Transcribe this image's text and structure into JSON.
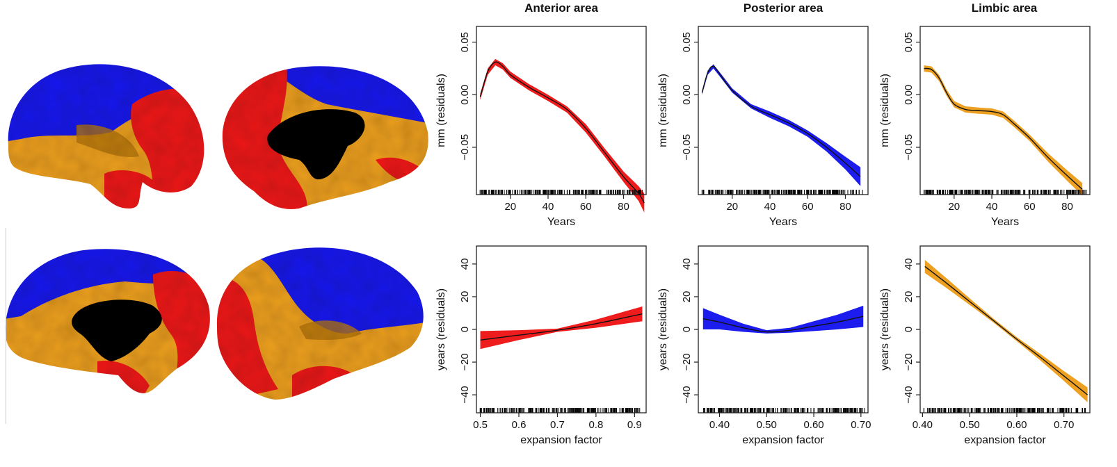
{
  "colors": {
    "anterior": "#ee1c1c",
    "posterior": "#1c1cee",
    "limbic": "#eda021",
    "fit_line": "#111111",
    "medial_wall": "#000000"
  },
  "brain_maps": {
    "description_icon": "brain-surface-icon",
    "views": [
      "lateral-left",
      "medial-left",
      "medial-right",
      "lateral-right"
    ]
  },
  "chart_data": [
    {
      "type": "line",
      "title": "Anterior area",
      "xlabel": "Years",
      "ylabel": "mm (residuals)",
      "xlim": [
        2,
        92
      ],
      "ylim": [
        -0.095,
        0.065
      ],
      "xticks": [
        20,
        40,
        60,
        80
      ],
      "xtick_labels": [
        "20",
        "40",
        "60",
        "80"
      ],
      "yticks": [
        -0.05,
        0.0,
        0.05
      ],
      "ytick_labels": [
        "−0.05",
        "0.00",
        "0.05"
      ],
      "rug": true,
      "grid": false,
      "series": [
        {
          "x": [
            4,
            8,
            12,
            16,
            20,
            30,
            40,
            50,
            60,
            70,
            80,
            88,
            91
          ],
          "y": [
            -0.002,
            0.022,
            0.031,
            0.027,
            0.019,
            0.007,
            -0.003,
            -0.014,
            -0.032,
            -0.055,
            -0.078,
            -0.094,
            -0.103
          ],
          "band": [
            0.003,
            0.003,
            0.003,
            0.003,
            0.003,
            0.003,
            0.003,
            0.003,
            0.004,
            0.004,
            0.005,
            0.007,
            0.009
          ]
        }
      ]
    },
    {
      "type": "line",
      "title": "Posterior area",
      "xlabel": "Years",
      "ylabel": "mm (residuals)",
      "xlim": [
        2,
        92
      ],
      "ylim": [
        -0.095,
        0.065
      ],
      "xticks": [
        20,
        40,
        60,
        80
      ],
      "xtick_labels": [
        "20",
        "40",
        "60",
        "80"
      ],
      "yticks": [
        -0.05,
        0.0,
        0.05
      ],
      "ytick_labels": [
        "−0.05",
        "0.00",
        "0.05"
      ],
      "rug": true,
      "grid": false,
      "series": [
        {
          "x": [
            4,
            7,
            10,
            14,
            20,
            30,
            40,
            50,
            60,
            70,
            80,
            88
          ],
          "y": [
            0.002,
            0.021,
            0.027,
            0.018,
            0.004,
            -0.011,
            -0.019,
            -0.027,
            -0.037,
            -0.05,
            -0.065,
            -0.078
          ],
          "band": [
            0.002,
            0.002,
            0.002,
            0.002,
            0.002,
            0.002,
            0.003,
            0.003,
            0.003,
            0.004,
            0.006,
            0.009
          ]
        }
      ]
    },
    {
      "type": "line",
      "title": "Limbic area",
      "xlabel": "Years",
      "ylabel": "mm (residuals)",
      "xlim": [
        2,
        92
      ],
      "ylim": [
        -0.095,
        0.065
      ],
      "xticks": [
        20,
        40,
        60,
        80
      ],
      "xtick_labels": [
        "20",
        "40",
        "60",
        "80"
      ],
      "yticks": [
        -0.05,
        0.0,
        0.05
      ],
      "ytick_labels": [
        "−0.05",
        "0.00",
        "0.05"
      ],
      "rug": true,
      "grid": false,
      "series": [
        {
          "x": [
            4,
            8,
            12,
            16,
            20,
            26,
            32,
            40,
            46,
            52,
            60,
            70,
            80,
            88
          ],
          "y": [
            0.025,
            0.024,
            0.016,
            0.002,
            -0.009,
            -0.014,
            -0.015,
            -0.016,
            -0.019,
            -0.028,
            -0.041,
            -0.06,
            -0.077,
            -0.09
          ],
          "band": [
            0.003,
            0.003,
            0.003,
            0.003,
            0.003,
            0.003,
            0.003,
            0.003,
            0.003,
            0.003,
            0.003,
            0.004,
            0.005,
            0.006
          ]
        }
      ]
    },
    {
      "type": "line",
      "title": "",
      "xlabel": "expansion factor",
      "ylabel": "years (residuals)",
      "xlim": [
        0.49,
        0.93
      ],
      "ylim": [
        -51,
        51
      ],
      "xticks": [
        0.5,
        0.6,
        0.7,
        0.8,
        0.9
      ],
      "xtick_labels": [
        "0.5",
        "0.6",
        "0.7",
        "0.8",
        "0.9"
      ],
      "yticks": [
        -40,
        -20,
        0,
        20,
        40
      ],
      "ytick_labels": [
        "−40",
        "−20",
        "0",
        "20",
        "40"
      ],
      "rug": true,
      "grid": false,
      "series": [
        {
          "x": [
            0.5,
            0.6,
            0.7,
            0.8,
            0.92
          ],
          "y": [
            -6.5,
            -3.5,
            -0.5,
            3.5,
            9.5
          ],
          "band": [
            5.5,
            3.0,
            1.0,
            2.5,
            4.5
          ]
        }
      ]
    },
    {
      "type": "line",
      "title": "",
      "xlabel": "expansion factor",
      "ylabel": "years (residuals)",
      "xlim": [
        0.355,
        0.715
      ],
      "ylim": [
        -51,
        51
      ],
      "xticks": [
        0.4,
        0.5,
        0.6,
        0.7
      ],
      "xtick_labels": [
        "0.40",
        "0.50",
        "0.60",
        "0.70"
      ],
      "yticks": [
        -40,
        -20,
        0,
        20,
        40
      ],
      "ytick_labels": [
        "−40",
        "−20",
        "0",
        "20",
        "40"
      ],
      "rug": true,
      "grid": false,
      "series": [
        {
          "x": [
            0.365,
            0.4,
            0.45,
            0.5,
            0.55,
            0.6,
            0.65,
            0.705
          ],
          "y": [
            6.5,
            4.5,
            1.0,
            -1.5,
            -0.5,
            2.0,
            4.5,
            8.0
          ],
          "band": [
            6.5,
            4.5,
            2.5,
            1.0,
            1.5,
            3.0,
            4.5,
            6.5
          ]
        }
      ]
    },
    {
      "type": "line",
      "title": "",
      "xlabel": "expansion factor",
      "ylabel": "years (residuals)",
      "xlim": [
        0.395,
        0.755
      ],
      "ylim": [
        -51,
        51
      ],
      "xticks": [
        0.4,
        0.5,
        0.6,
        0.7
      ],
      "xtick_labels": [
        "0.40",
        "0.50",
        "0.60",
        "0.70"
      ],
      "yticks": [
        -40,
        -20,
        0,
        20,
        40
      ],
      "ytick_labels": [
        "−40",
        "−20",
        "0",
        "20",
        "40"
      ],
      "rug": true,
      "grid": false,
      "series": [
        {
          "x": [
            0.405,
            0.45,
            0.5,
            0.55,
            0.6,
            0.65,
            0.7,
            0.75
          ],
          "y": [
            38.5,
            28.5,
            17.0,
            5.5,
            -6.0,
            -17.0,
            -28.5,
            -40.0
          ],
          "band": [
            4.0,
            3.0,
            2.0,
            1.2,
            1.2,
            2.0,
            3.0,
            4.5
          ]
        }
      ]
    }
  ]
}
